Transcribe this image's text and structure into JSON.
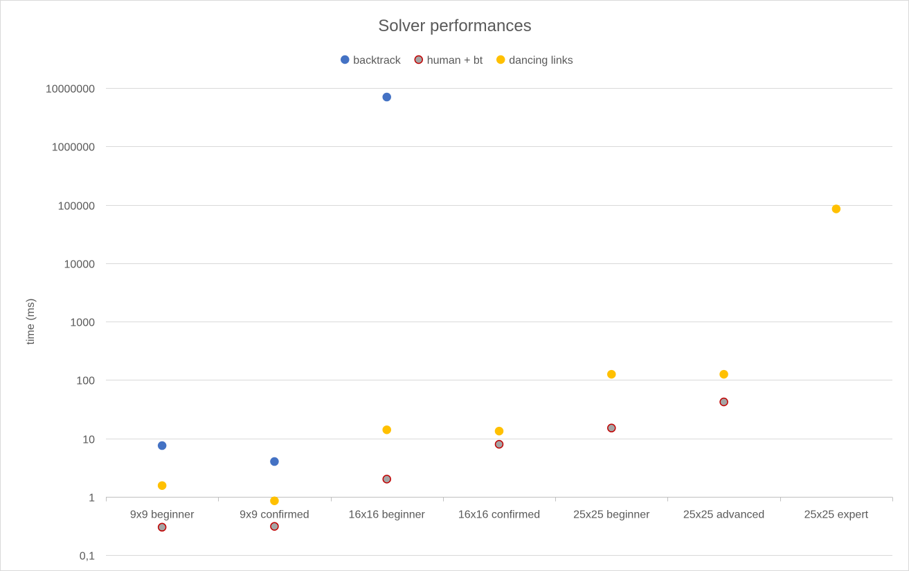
{
  "chart_data": {
    "type": "scatter",
    "title": "Solver performances",
    "ylabel": "time (ms)",
    "xlabel": "",
    "y_scale": "log",
    "ylim": [
      0.1,
      10000000
    ],
    "y_ticks": [
      0.1,
      1,
      10,
      100,
      1000,
      10000,
      100000,
      1000000,
      10000000
    ],
    "y_tick_labels": [
      "0,1",
      "1",
      "10",
      "100",
      "1000",
      "10000",
      "100000",
      "1000000",
      "10000000"
    ],
    "categories": [
      "9x9 beginner",
      "9x9 confirmed",
      "16x16 beginner",
      "16x16 confirmed",
      "25x25 beginner",
      "25x25 advanced",
      "25x25 expert"
    ],
    "grid": true,
    "legend_position": "top",
    "series": [
      {
        "name": "backtrack",
        "color": "#4472c4",
        "stroke": "#4472c4",
        "values": [
          7.5,
          4.0,
          7000000,
          null,
          null,
          null,
          null
        ]
      },
      {
        "name": "human + bt",
        "color": "#a5a5a5",
        "stroke": "#c00000",
        "values": [
          0.3,
          0.31,
          2.0,
          7.9,
          15,
          42,
          null
        ]
      },
      {
        "name": "dancing links",
        "color": "#ffc000",
        "stroke": "#ffc000",
        "values": [
          1.55,
          0.85,
          14,
          13.3,
          125,
          125,
          85000
        ]
      }
    ]
  }
}
